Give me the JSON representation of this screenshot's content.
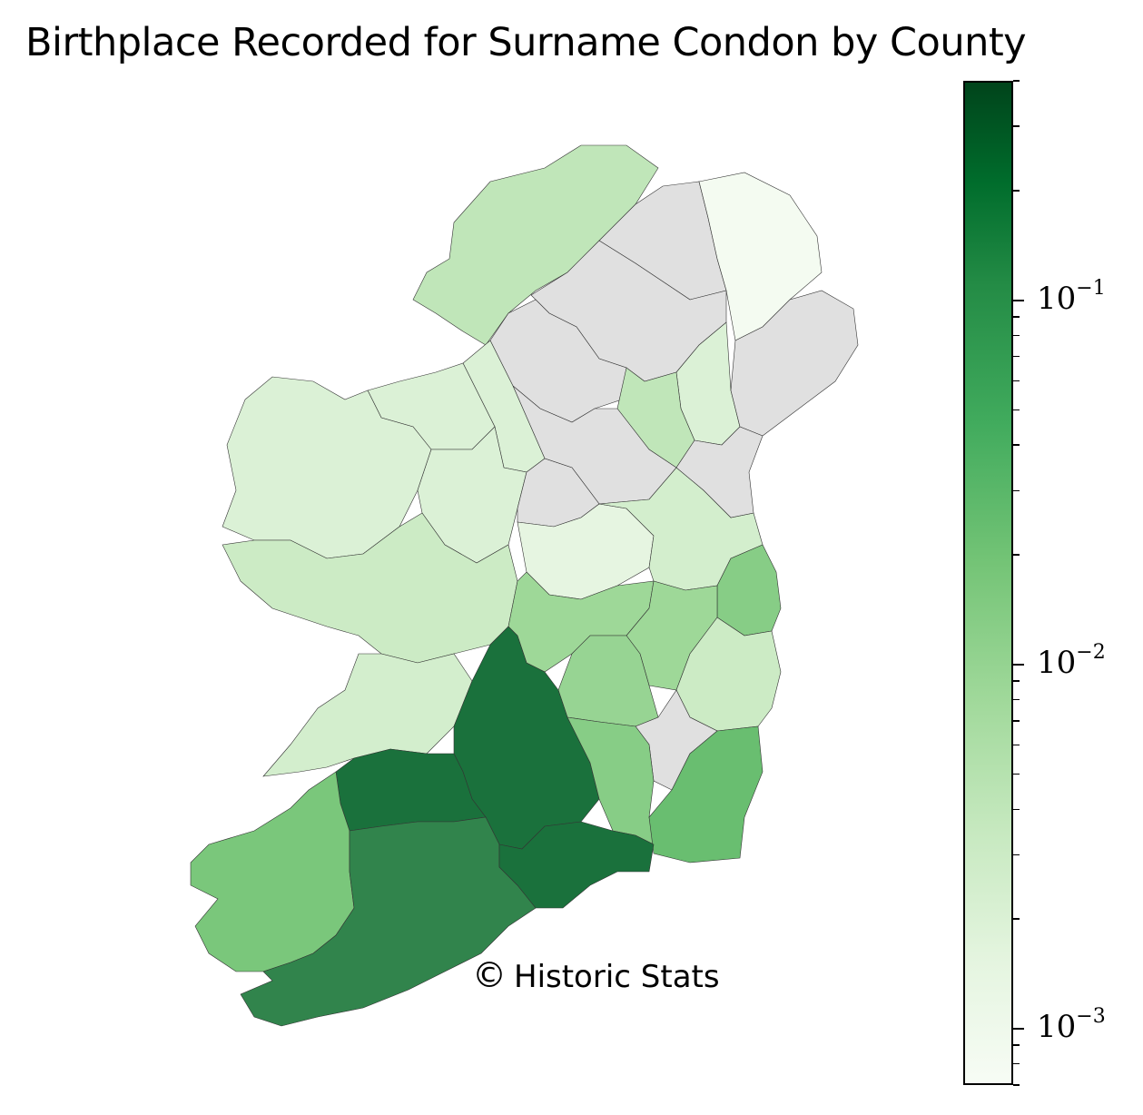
{
  "title": "Birthplace Recorded for Surname Condon by County",
  "credit": {
    "symbol": "©",
    "text": "Historic Stats"
  },
  "colorbar": {
    "scale": "log",
    "range": [
      0.0007,
      0.4
    ],
    "ticks": [
      {
        "value": 0.1,
        "base": "10",
        "exp": "−1"
      },
      {
        "value": 0.01,
        "base": "10",
        "exp": "−2"
      },
      {
        "value": 0.001,
        "base": "10",
        "exp": "−3"
      }
    ],
    "colors": [
      "#f7fcf5",
      "#00441b"
    ]
  },
  "chart_data": {
    "type": "choropleth",
    "title": "Birthplace Recorded for Surname Condon by County",
    "scale": "log",
    "no_data_color": "#e0e0e0",
    "regions": [
      {
        "name": "Donegal",
        "value": 0.004
      },
      {
        "name": "Londonderry",
        "value": null
      },
      {
        "name": "Antrim",
        "value": 0.0008
      },
      {
        "name": "Tyrone",
        "value": null
      },
      {
        "name": "Fermanagh",
        "value": null
      },
      {
        "name": "Armagh",
        "value": 0.002
      },
      {
        "name": "Down",
        "value": null
      },
      {
        "name": "Monaghan",
        "value": 0.004
      },
      {
        "name": "Cavan",
        "value": null
      },
      {
        "name": "Leitrim",
        "value": 0.002
      },
      {
        "name": "Sligo",
        "value": 0.002
      },
      {
        "name": "Mayo",
        "value": 0.002
      },
      {
        "name": "Roscommon",
        "value": 0.002
      },
      {
        "name": "Longford",
        "value": null
      },
      {
        "name": "Westmeath",
        "value": 0.0015
      },
      {
        "name": "Meath",
        "value": 0.0025
      },
      {
        "name": "Louth",
        "value": null
      },
      {
        "name": "Dublin",
        "value": 0.012
      },
      {
        "name": "Galway",
        "value": 0.003
      },
      {
        "name": "Offaly",
        "value": 0.008
      },
      {
        "name": "Kildare",
        "value": 0.008
      },
      {
        "name": "Laois",
        "value": 0.009
      },
      {
        "name": "Wicklow",
        "value": 0.003
      },
      {
        "name": "Carlow",
        "value": null
      },
      {
        "name": "Clare",
        "value": 0.0025
      },
      {
        "name": "Tipperary",
        "value": 0.15
      },
      {
        "name": "Kilkenny",
        "value": 0.012
      },
      {
        "name": "Wexford",
        "value": 0.02
      },
      {
        "name": "Limerick",
        "value": 0.15
      },
      {
        "name": "Kerry",
        "value": 0.015
      },
      {
        "name": "Cork",
        "value": 0.08
      },
      {
        "name": "Waterford",
        "value": 0.15
      }
    ]
  }
}
